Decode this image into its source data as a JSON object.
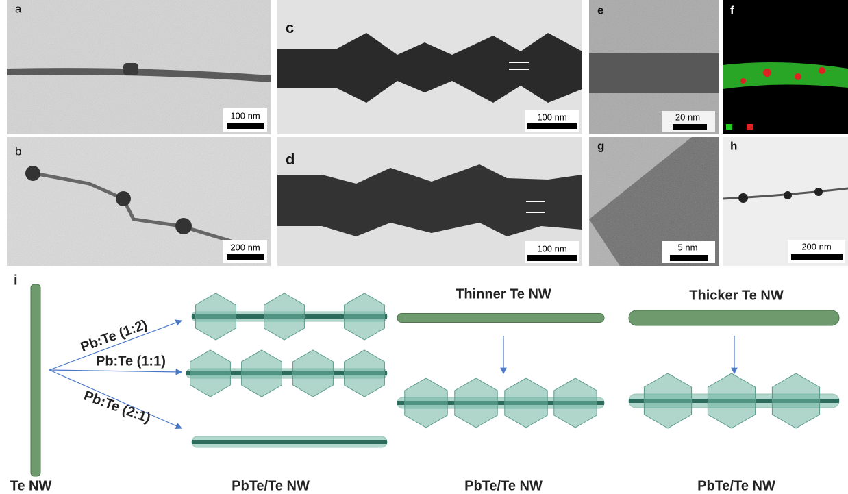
{
  "panels": [
    {
      "label": "a",
      "scale_bar": "100 nm"
    },
    {
      "label": "b",
      "scale_bar": "200 nm"
    },
    {
      "label": "c",
      "scale_bar": "100 nm"
    },
    {
      "label": "d",
      "scale_bar": "100 nm"
    },
    {
      "label": "e",
      "scale_bar": "20 nm"
    },
    {
      "label": "f"
    },
    {
      "label": "g",
      "scale_bar": "5 nm"
    },
    {
      "label": "h",
      "scale_bar": "200 nm"
    }
  ],
  "schematic": {
    "label": "i",
    "start": "Te NW",
    "ratios": [
      "Pb:Te (1:2)",
      "Pb:Te (1:1)",
      "Pb:Te (2:1)"
    ],
    "thinner": "Thinner Te NW",
    "thicker": "Thicker Te NW",
    "products": [
      "PbTe/Te NW",
      "PbTe/Te NW",
      "PbTe/Te NW"
    ]
  }
}
